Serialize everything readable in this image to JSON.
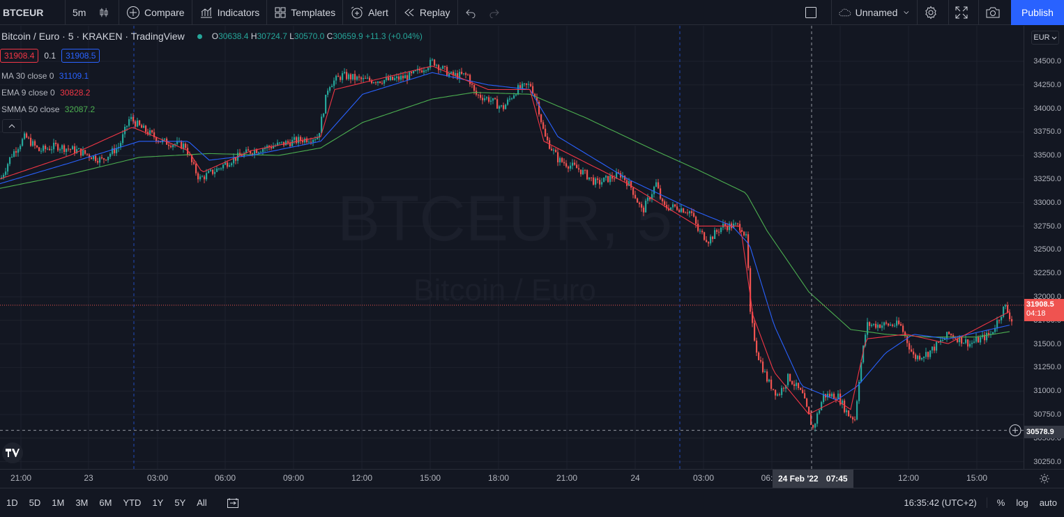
{
  "toolbar": {
    "symbol": "BTCEUR",
    "interval": "5m",
    "compare": "Compare",
    "indicators": "Indicators",
    "templates": "Templates",
    "alert": "Alert",
    "replay": "Replay",
    "layout_name": "Unnamed",
    "publish": "Publish"
  },
  "legend": {
    "title": "Bitcoin / Euro · 5 · KRAKEN · TradingView",
    "o_key": "O",
    "o": "30638.4",
    "h_key": "H",
    "h": "30724.7",
    "l_key": "L",
    "l": "30570.0",
    "c_key": "C",
    "c": "30659.9",
    "change": "+11.3 (+0.04%)"
  },
  "bidask": {
    "bid": "31908.4",
    "spread": "0.1",
    "ask": "31908.5"
  },
  "indicators": [
    {
      "name": "MA",
      "params": "30 close 0",
      "value": "31109.1",
      "color": "#2962ff"
    },
    {
      "name": "EMA",
      "params": "9 close 0",
      "value": "30828.2",
      "color": "#f23645"
    },
    {
      "name": "SMMA",
      "params": "50 close",
      "value": "32087.2",
      "color": "#4caf50"
    }
  ],
  "watermark": {
    "line1": "BTCEUR, 5",
    "line2": "Bitcoin / Euro"
  },
  "price_axis": {
    "currency": "EUR",
    "ticks": [
      "34500.0",
      "34250.0",
      "34000.0",
      "33750.0",
      "33500.0",
      "33250.0",
      "33000.0",
      "32750.0",
      "32500.0",
      "32250.0",
      "32000.0",
      "31750.0",
      "31500.0",
      "31250.0",
      "31000.0",
      "30750.0",
      "30500.0",
      "30250.0"
    ],
    "last_price": "31908.5",
    "countdown": "04:18",
    "crosshair_price": "30578.9"
  },
  "time_axis": {
    "ticks": [
      "21:00",
      "23",
      "03:00",
      "06:00",
      "09:00",
      "12:00",
      "15:00",
      "18:00",
      "21:00",
      "24",
      "03:00",
      "06:",
      "12:00",
      "15:00"
    ],
    "crosshair_date": "24 Feb '22",
    "crosshair_time": "07:45"
  },
  "bottom": {
    "ranges": [
      "1D",
      "5D",
      "1M",
      "3M",
      "6M",
      "YTD",
      "1Y",
      "5Y",
      "All"
    ],
    "clock": "16:35:42 (UTC+2)",
    "percent": "%",
    "log": "log",
    "auto": "auto"
  },
  "colors": {
    "up": "#26a69a",
    "down": "#ef5350",
    "background": "#131722",
    "grid": "#1e222d",
    "accent": "#2962ff"
  },
  "chart_data": {
    "type": "candlestick",
    "symbol": "BTCEUR",
    "interval": "5",
    "ylim": [
      30150,
      34700
    ],
    "anchors": [
      [
        0,
        33250
      ],
      [
        15,
        33500
      ],
      [
        35,
        33700
      ],
      [
        55,
        33550
      ],
      [
        80,
        33600
      ],
      [
        110,
        33550
      ],
      [
        145,
        33450
      ],
      [
        170,
        33600
      ],
      [
        185,
        33900
      ],
      [
        200,
        33800
      ],
      [
        230,
        33650
      ],
      [
        265,
        33600
      ],
      [
        275,
        33400
      ],
      [
        285,
        33250
      ],
      [
        310,
        33350
      ],
      [
        330,
        33450
      ],
      [
        360,
        33550
      ],
      [
        390,
        33600
      ],
      [
        420,
        33650
      ],
      [
        455,
        33700
      ],
      [
        462,
        33950
      ],
      [
        470,
        34250
      ],
      [
        490,
        34350
      ],
      [
        520,
        34300
      ],
      [
        560,
        34300
      ],
      [
        590,
        34350
      ],
      [
        620,
        34500
      ],
      [
        645,
        34350
      ],
      [
        670,
        34350
      ],
      [
        680,
        34150
      ],
      [
        700,
        34100
      ],
      [
        720,
        34000
      ],
      [
        740,
        34200
      ],
      [
        760,
        34250
      ],
      [
        770,
        34050
      ],
      [
        780,
        33700
      ],
      [
        800,
        33450
      ],
      [
        830,
        33350
      ],
      [
        855,
        33200
      ],
      [
        870,
        33250
      ],
      [
        890,
        33300
      ],
      [
        905,
        33150
      ],
      [
        920,
        32900
      ],
      [
        940,
        33200
      ],
      [
        950,
        32950
      ],
      [
        970,
        32950
      ],
      [
        990,
        32900
      ],
      [
        1000,
        32700
      ],
      [
        1015,
        32600
      ],
      [
        1035,
        32750
      ],
      [
        1062,
        32750
      ],
      [
        1070,
        32600
      ],
      [
        1075,
        31800
      ],
      [
        1085,
        31400
      ],
      [
        1100,
        31100
      ],
      [
        1115,
        30950
      ],
      [
        1130,
        31150
      ],
      [
        1150,
        30950
      ],
      [
        1160,
        30700
      ],
      [
        1165,
        30600
      ],
      [
        1180,
        30950
      ],
      [
        1200,
        30950
      ],
      [
        1215,
        30750
      ],
      [
        1225,
        30700
      ],
      [
        1232,
        31200
      ],
      [
        1242,
        31700
      ],
      [
        1270,
        31700
      ],
      [
        1290,
        31700
      ],
      [
        1310,
        31350
      ],
      [
        1330,
        31400
      ],
      [
        1360,
        31600
      ],
      [
        1390,
        31500
      ],
      [
        1420,
        31600
      ],
      [
        1440,
        31900
      ],
      [
        1450,
        31750
      ]
    ],
    "ma30": [
      [
        0,
        33200
      ],
      [
        100,
        33420
      ],
      [
        200,
        33650
      ],
      [
        270,
        33650
      ],
      [
        300,
        33450
      ],
      [
        360,
        33500
      ],
      [
        460,
        33650
      ],
      [
        520,
        34150
      ],
      [
        620,
        34380
      ],
      [
        700,
        34250
      ],
      [
        760,
        34200
      ],
      [
        800,
        33700
      ],
      [
        900,
        33250
      ],
      [
        1000,
        32900
      ],
      [
        1050,
        32750
      ],
      [
        1075,
        32550
      ],
      [
        1110,
        31700
      ],
      [
        1150,
        31050
      ],
      [
        1200,
        30900
      ],
      [
        1230,
        31050
      ],
      [
        1270,
        31400
      ],
      [
        1310,
        31600
      ],
      [
        1360,
        31550
      ],
      [
        1450,
        31700
      ]
    ],
    "ema9": [
      [
        0,
        33250
      ],
      [
        100,
        33500
      ],
      [
        190,
        33800
      ],
      [
        270,
        33550
      ],
      [
        290,
        33320
      ],
      [
        360,
        33550
      ],
      [
        460,
        33700
      ],
      [
        480,
        34200
      ],
      [
        620,
        34450
      ],
      [
        700,
        34200
      ],
      [
        760,
        34200
      ],
      [
        780,
        33650
      ],
      [
        900,
        33200
      ],
      [
        1000,
        32750
      ],
      [
        1062,
        32750
      ],
      [
        1080,
        31800
      ],
      [
        1110,
        31200
      ],
      [
        1160,
        30750
      ],
      [
        1200,
        30900
      ],
      [
        1220,
        30800
      ],
      [
        1242,
        31550
      ],
      [
        1300,
        31600
      ],
      [
        1360,
        31500
      ],
      [
        1450,
        31850
      ]
    ],
    "smma50": [
      [
        0,
        33150
      ],
      [
        100,
        33300
      ],
      [
        200,
        33480
      ],
      [
        300,
        33520
      ],
      [
        400,
        33500
      ],
      [
        460,
        33580
      ],
      [
        520,
        33850
      ],
      [
        620,
        34100
      ],
      [
        680,
        34170
      ],
      [
        760,
        34150
      ],
      [
        840,
        33900
      ],
      [
        940,
        33550
      ],
      [
        1000,
        33350
      ],
      [
        1070,
        33100
      ],
      [
        1100,
        32700
      ],
      [
        1160,
        32050
      ],
      [
        1220,
        31650
      ],
      [
        1270,
        31600
      ],
      [
        1330,
        31570
      ],
      [
        1400,
        31570
      ],
      [
        1450,
        31630
      ]
    ],
    "last_price": 31908.5,
    "crosshair_price": 30578.9,
    "day_separators": [
      "23",
      "24"
    ]
  }
}
